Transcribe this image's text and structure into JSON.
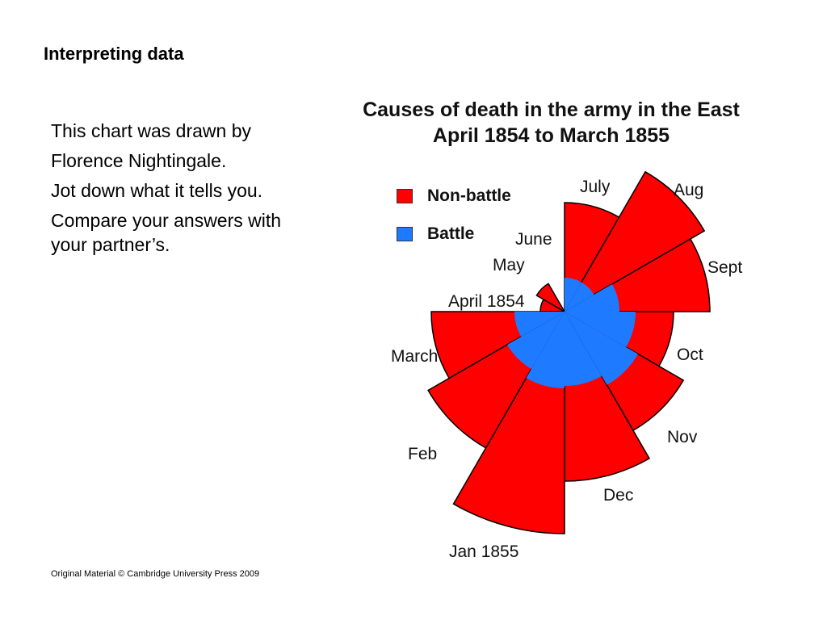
{
  "slide": {
    "title": "Interpreting data",
    "lines": [
      "This chart was drawn by",
      "Florence Nightingale.",
      "Jot down what it tells you.",
      "Compare your answers with your partner’s."
    ],
    "footer": "Original Material © Cambridge University Press 2009"
  },
  "chart_data": {
    "type": "polar-area",
    "title": "Causes of death in the army in the East",
    "subtitle": "April 1854 to March 1855",
    "series": [
      {
        "name": "Non-battle",
        "color": "#ff0000"
      },
      {
        "name": "Battle",
        "color": "#1e7bff"
      }
    ],
    "categories": [
      "April 1854",
      "May",
      "June",
      "July",
      "Aug",
      "Sept",
      "Oct",
      "Nov",
      "Dec",
      "Jan 1855",
      "Feb",
      "March"
    ],
    "non_battle": [
      30,
      40,
      0,
      135,
      200,
      180,
      135,
      170,
      210,
      275,
      195,
      165
    ],
    "battle": [
      0,
      0,
      0,
      42,
      42,
      68,
      88,
      105,
      92,
      95,
      82,
      62
    ],
    "legend_position": "top-left"
  }
}
